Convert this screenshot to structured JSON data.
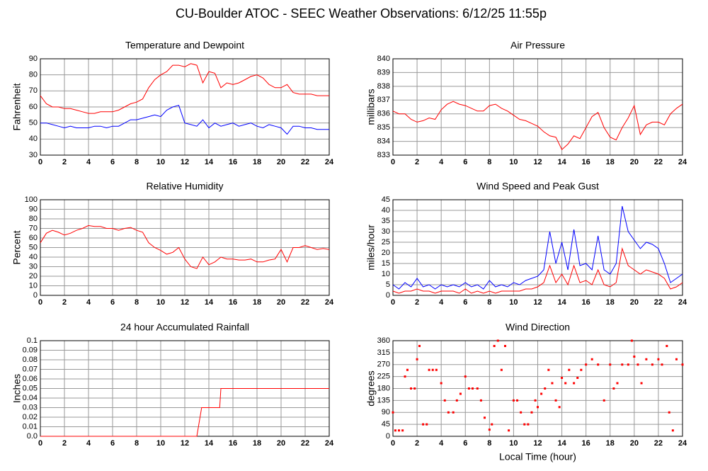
{
  "title": "CU-Boulder ATOC - SEEC Weather Observations: 6/12/25 11:55p",
  "chart_data": [
    {
      "type": "line",
      "title": "Temperature and Dewpoint",
      "ylabel": "Fahrenheit",
      "x": [
        0,
        0.5,
        1,
        1.5,
        2,
        2.5,
        3,
        3.5,
        4,
        4.5,
        5,
        5.5,
        6,
        6.5,
        7,
        7.5,
        8,
        8.5,
        9,
        9.5,
        10,
        10.5,
        11,
        11.5,
        12,
        12.5,
        13,
        13.5,
        14,
        14.5,
        15,
        15.5,
        16,
        16.5,
        17,
        17.5,
        18,
        18.5,
        19,
        19.5,
        20,
        20.5,
        21,
        21.5,
        22,
        22.5,
        23,
        23.5,
        24
      ],
      "xlim": [
        0,
        24
      ],
      "xticks": [
        0,
        2,
        4,
        6,
        8,
        10,
        12,
        14,
        16,
        18,
        20,
        22,
        24
      ],
      "ylim": [
        30,
        90
      ],
      "yticks": [
        30,
        40,
        50,
        60,
        70,
        80,
        90
      ],
      "grid": true,
      "series": [
        {
          "color": "#ff0000",
          "values": [
            67,
            62,
            60,
            60,
            59,
            59,
            58,
            57,
            56,
            56,
            57,
            57,
            57,
            58,
            60,
            62,
            63,
            65,
            72,
            77,
            80,
            82,
            86,
            86,
            85,
            87,
            86,
            75,
            82,
            81,
            72,
            75,
            74,
            75,
            77,
            79,
            80,
            78,
            74,
            72,
            72,
            74,
            69,
            68,
            68,
            68,
            67,
            67,
            67
          ]
        },
        {
          "color": "#0000ff",
          "values": [
            50,
            50,
            49,
            48,
            47,
            48,
            47,
            47,
            47,
            48,
            48,
            47,
            48,
            48,
            50,
            52,
            52,
            53,
            54,
            55,
            54,
            58,
            60,
            61,
            50,
            49,
            48,
            52,
            47,
            50,
            48,
            49,
            50,
            48,
            49,
            50,
            48,
            47,
            49,
            48,
            47,
            43,
            48,
            48,
            47,
            47,
            46,
            46,
            46
          ]
        }
      ]
    },
    {
      "type": "line",
      "title": "Air Pressure",
      "ylabel": "millibars",
      "x": [
        0,
        0.5,
        1,
        1.5,
        2,
        2.5,
        3,
        3.5,
        4,
        4.5,
        5,
        5.5,
        6,
        6.5,
        7,
        7.5,
        8,
        8.5,
        9,
        9.5,
        10,
        10.5,
        11,
        11.5,
        12,
        12.5,
        13,
        13.5,
        14,
        14.5,
        15,
        15.5,
        16,
        16.5,
        17,
        17.5,
        18,
        18.5,
        19,
        19.5,
        20,
        20.5,
        21,
        21.5,
        22,
        22.5,
        23,
        23.5,
        24
      ],
      "xlim": [
        0,
        24
      ],
      "xticks": [
        0,
        2,
        4,
        6,
        8,
        10,
        12,
        14,
        16,
        18,
        20,
        22,
        24
      ],
      "ylim": [
        833,
        840
      ],
      "yticks": [
        833,
        834,
        835,
        836,
        837,
        838,
        839,
        840
      ],
      "grid": true,
      "series": [
        {
          "color": "#ff0000",
          "values": [
            836.2,
            836.0,
            836.0,
            835.6,
            835.4,
            835.5,
            835.7,
            835.6,
            836.3,
            836.7,
            836.9,
            836.7,
            836.6,
            836.4,
            836.2,
            836.2,
            836.6,
            836.7,
            836.4,
            836.2,
            835.9,
            835.6,
            835.5,
            835.3,
            835.1,
            834.7,
            834.4,
            834.3,
            833.4,
            833.8,
            834.4,
            834.2,
            835.0,
            835.8,
            836.1,
            835.0,
            834.3,
            834.1,
            835.0,
            835.7,
            836.6,
            834.5,
            835.2,
            835.4,
            835.4,
            835.2,
            836.0,
            836.4,
            836.7
          ]
        }
      ]
    },
    {
      "type": "line",
      "title": "Relative Humidity",
      "ylabel": "Percent",
      "x": [
        0,
        0.5,
        1,
        1.5,
        2,
        2.5,
        3,
        3.5,
        4,
        4.5,
        5,
        5.5,
        6,
        6.5,
        7,
        7.5,
        8,
        8.5,
        9,
        9.5,
        10,
        10.5,
        11,
        11.5,
        12,
        12.5,
        13,
        13.5,
        14,
        14.5,
        15,
        15.5,
        16,
        16.5,
        17,
        17.5,
        18,
        18.5,
        19,
        19.5,
        20,
        20.5,
        21,
        21.5,
        22,
        22.5,
        23,
        23.5,
        24
      ],
      "xlim": [
        0,
        24
      ],
      "xticks": [
        0,
        2,
        4,
        6,
        8,
        10,
        12,
        14,
        16,
        18,
        20,
        22,
        24
      ],
      "ylim": [
        0,
        100
      ],
      "yticks": [
        0,
        10,
        20,
        30,
        40,
        50,
        60,
        70,
        80,
        90,
        100
      ],
      "grid": true,
      "series": [
        {
          "color": "#ff0000",
          "values": [
            55,
            65,
            68,
            66,
            63,
            65,
            68,
            70,
            73,
            72,
            72,
            70,
            70,
            68,
            70,
            71,
            68,
            66,
            55,
            50,
            47,
            43,
            45,
            50,
            38,
            30,
            28,
            40,
            32,
            35,
            40,
            38,
            38,
            37,
            37,
            38,
            35,
            35,
            37,
            38,
            48,
            35,
            50,
            50,
            52,
            50,
            48,
            49,
            48
          ]
        }
      ]
    },
    {
      "type": "line",
      "title": "Wind Speed and Peak Gust",
      "ylabel": "miles/hour",
      "x": [
        0,
        0.5,
        1,
        1.5,
        2,
        2.5,
        3,
        3.5,
        4,
        4.5,
        5,
        5.5,
        6,
        6.5,
        7,
        7.5,
        8,
        8.5,
        9,
        9.5,
        10,
        10.5,
        11,
        11.5,
        12,
        12.5,
        13,
        13.5,
        14,
        14.5,
        15,
        15.5,
        16,
        16.5,
        17,
        17.5,
        18,
        18.5,
        19,
        19.5,
        20,
        20.5,
        21,
        21.5,
        22,
        22.5,
        23,
        23.5,
        24
      ],
      "xlim": [
        0,
        24
      ],
      "xticks": [
        0,
        2,
        4,
        6,
        8,
        10,
        12,
        14,
        16,
        18,
        20,
        22,
        24
      ],
      "ylim": [
        0,
        45
      ],
      "yticks": [
        0,
        5,
        10,
        15,
        20,
        25,
        30,
        35,
        40,
        45
      ],
      "grid": true,
      "series": [
        {
          "color": "#0000ff",
          "values": [
            5,
            3,
            6,
            4,
            8,
            4,
            5,
            3,
            5,
            4,
            5,
            4,
            6,
            4,
            5,
            3,
            7,
            4,
            5,
            4,
            6,
            5,
            7,
            8,
            9,
            12,
            30,
            15,
            25,
            12,
            31,
            14,
            15,
            12,
            28,
            12,
            10,
            15,
            42,
            30,
            26,
            22,
            25,
            24,
            22,
            15,
            6,
            8,
            10
          ]
        },
        {
          "color": "#ff0000",
          "values": [
            2,
            1,
            2,
            2,
            3,
            2,
            2,
            1,
            2,
            2,
            2,
            1,
            3,
            1,
            2,
            1,
            2,
            1,
            2,
            2,
            2,
            2,
            3,
            3,
            4,
            6,
            14,
            6,
            10,
            5,
            14,
            6,
            7,
            5,
            12,
            5,
            4,
            6,
            22,
            14,
            12,
            10,
            12,
            11,
            10,
            8,
            3,
            4,
            6
          ]
        }
      ]
    },
    {
      "type": "line",
      "title": "24 hour Accumulated Rainfall",
      "ylabel": "Inches",
      "x": [
        0,
        13,
        13.4,
        14.9,
        15,
        24
      ],
      "xlim": [
        0,
        24
      ],
      "xticks": [
        0,
        2,
        4,
        6,
        8,
        10,
        12,
        14,
        16,
        18,
        20,
        22,
        24
      ],
      "ylim": [
        0,
        0.1
      ],
      "yticks": [
        {
          "value": 0,
          "label": "0.0"
        },
        0.01,
        0.02,
        0.03,
        0.04,
        0.05,
        0.06,
        0.07,
        0.08,
        0.09,
        0.1
      ],
      "grid": true,
      "series": [
        {
          "color": "#ff0000",
          "values": [
            0,
            0,
            0.03,
            0.03,
            0.05,
            0.05
          ]
        }
      ]
    },
    {
      "type": "scatter",
      "title": "Wind Direction",
      "ylabel": "degrees",
      "xlabel": "Local Time (hour)",
      "x": [
        0,
        0.2,
        0.5,
        0.8,
        1,
        1.2,
        1.5,
        1.8,
        2,
        2.2,
        2.5,
        2.8,
        3,
        3.3,
        3.6,
        4,
        4.3,
        4.6,
        5,
        5.3,
        5.6,
        6,
        6.3,
        6.6,
        7,
        7.3,
        7.6,
        8,
        8.2,
        8.4,
        8.7,
        9,
        9.3,
        9.6,
        10,
        10.3,
        10.6,
        10.9,
        11.2,
        11.5,
        11.8,
        12,
        12.3,
        12.6,
        12.9,
        13.2,
        13.5,
        13.8,
        14,
        14.3,
        14.6,
        15,
        15.3,
        15.6,
        16,
        16.5,
        17,
        17.5,
        18,
        18.3,
        18.6,
        19,
        19.5,
        19.8,
        20,
        20.3,
        20.6,
        21,
        21.5,
        22,
        22.3,
        22.7,
        22.9,
        23.2,
        23.5,
        24
      ],
      "xlim": [
        0,
        24
      ],
      "xticks": [
        0,
        2,
        4,
        6,
        8,
        10,
        12,
        14,
        16,
        18,
        20,
        22,
        24
      ],
      "ylim": [
        0,
        360
      ],
      "yticks": [
        0,
        45,
        90,
        135,
        180,
        225,
        270,
        315,
        360
      ],
      "grid": true,
      "series": [
        {
          "color": "#ff0000",
          "values": [
            90,
            22,
            22,
            22,
            225,
            250,
            180,
            180,
            290,
            340,
            45,
            45,
            250,
            250,
            250,
            200,
            135,
            90,
            90,
            135,
            160,
            225,
            180,
            180,
            180,
            135,
            70,
            25,
            45,
            340,
            360,
            250,
            340,
            22,
            135,
            135,
            90,
            45,
            45,
            90,
            135,
            110,
            160,
            180,
            250,
            200,
            135,
            110,
            220,
            200,
            250,
            200,
            220,
            250,
            270,
            290,
            270,
            135,
            270,
            180,
            200,
            270,
            270,
            360,
            300,
            270,
            200,
            290,
            270,
            290,
            270,
            340,
            90,
            22,
            290,
            270
          ]
        }
      ]
    }
  ]
}
